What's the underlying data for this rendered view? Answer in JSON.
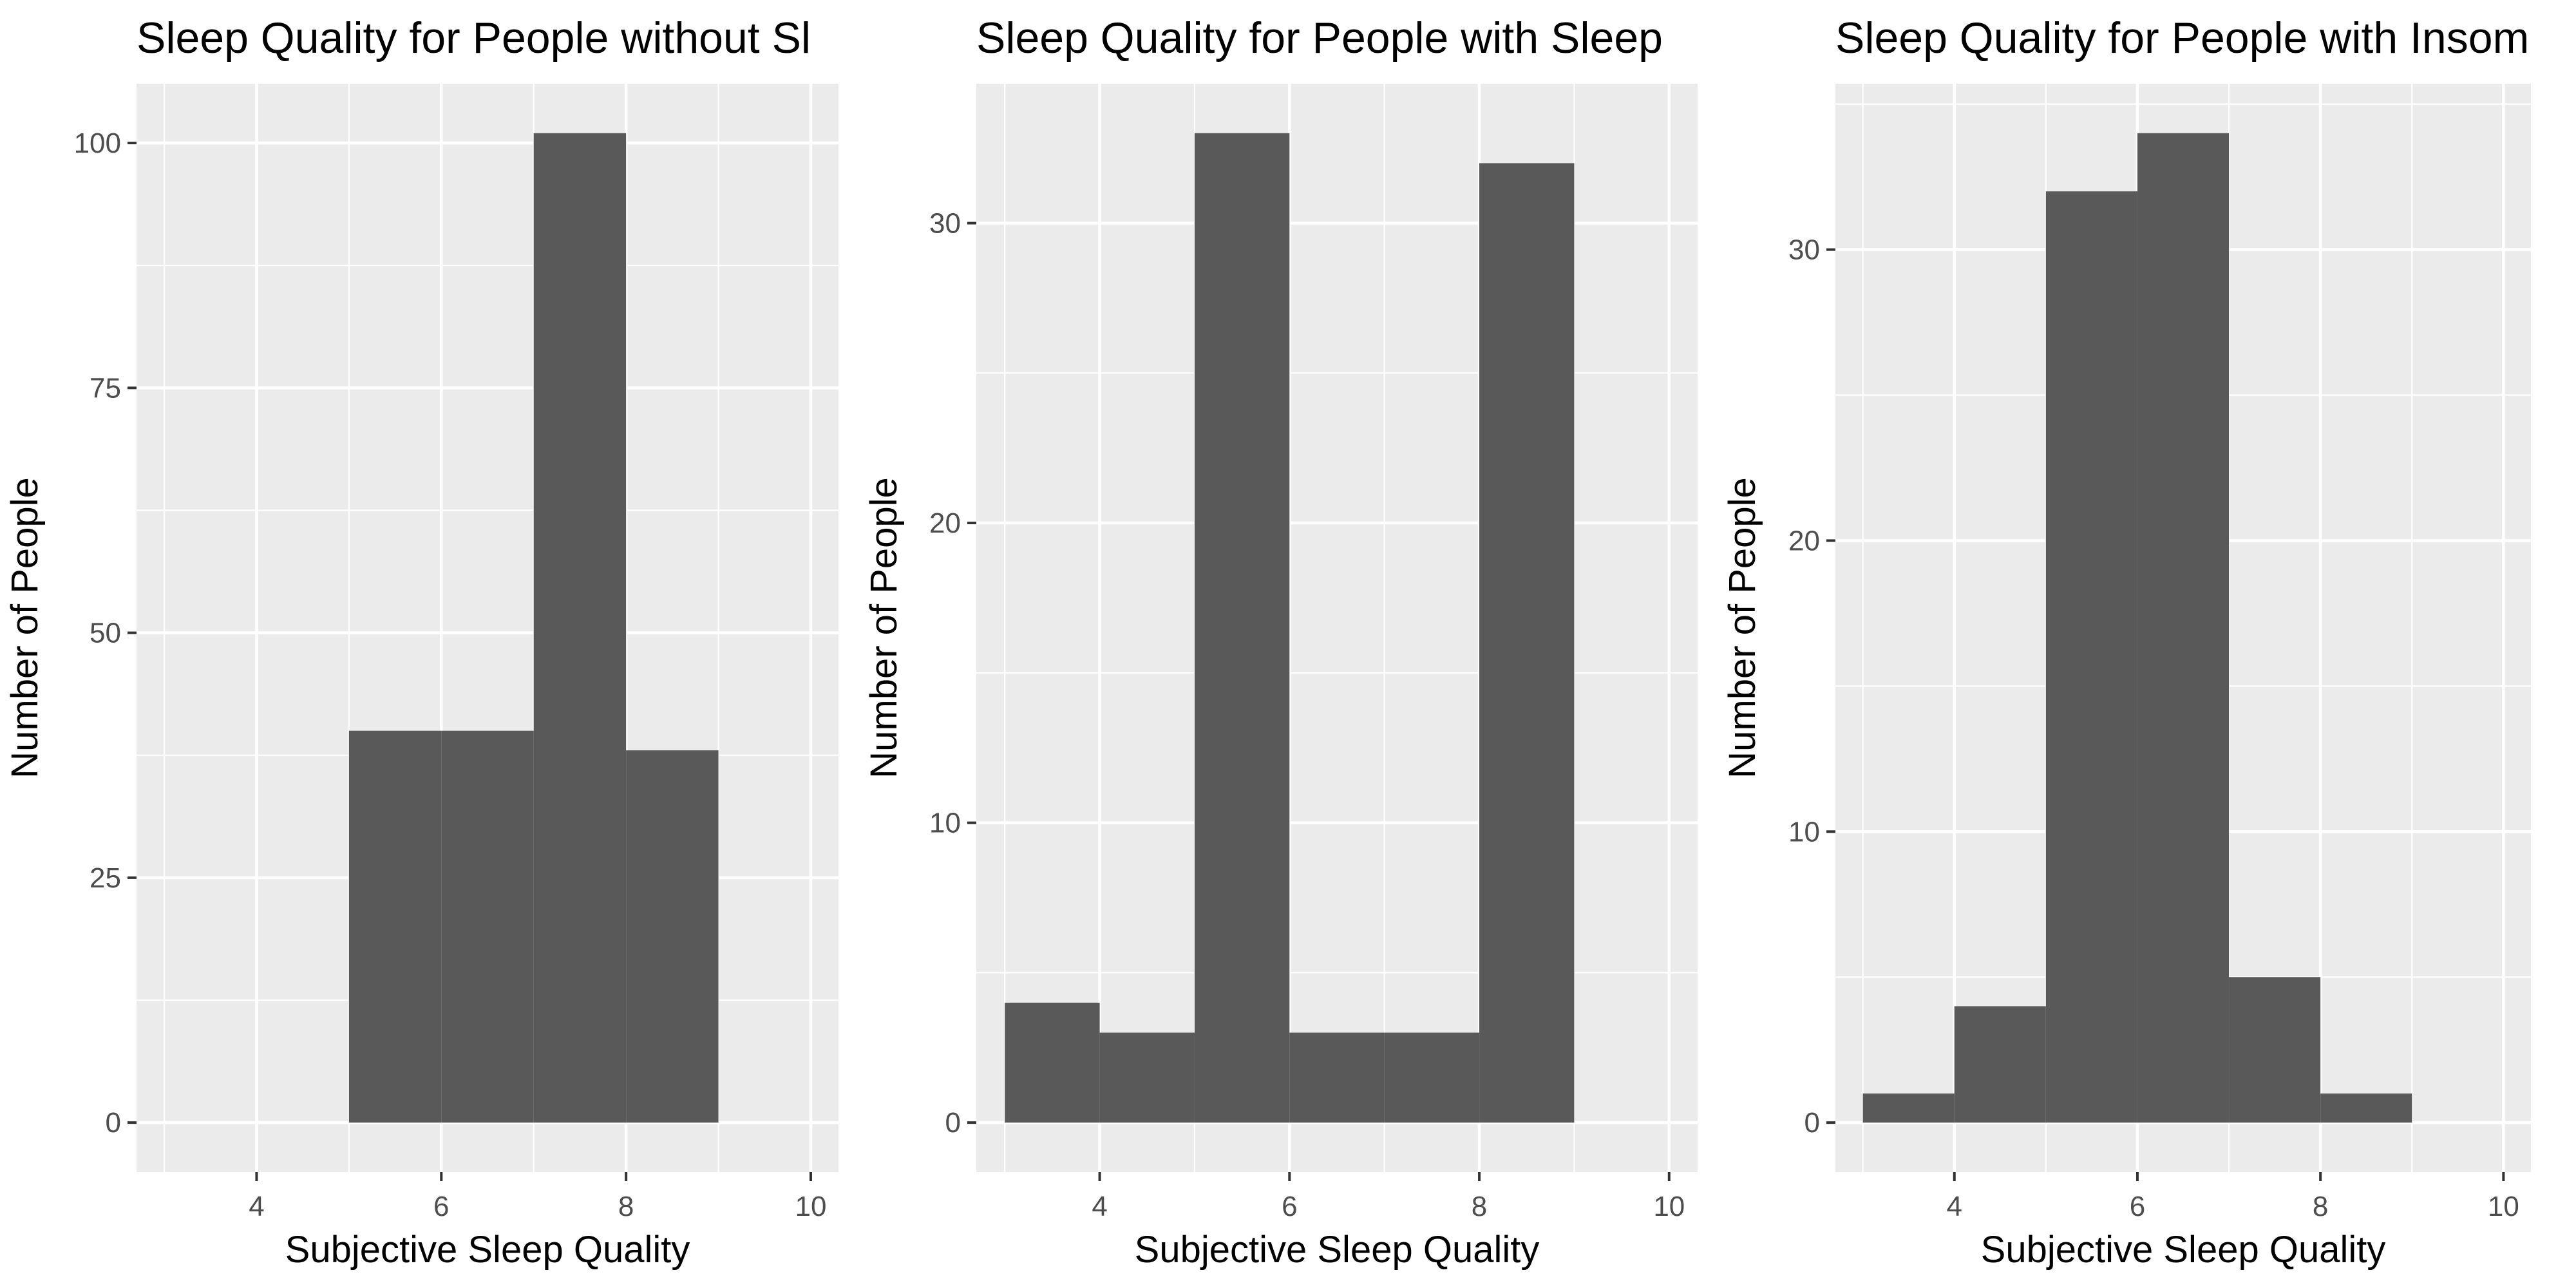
{
  "chart_data": [
    {
      "type": "bar",
      "title": "Sleep Quality for People without Sl",
      "xlabel": "Subjective Sleep Quality",
      "ylabel": "Number of People",
      "xlim": [
        2.7,
        10.3
      ],
      "ylim": [
        -5.05,
        106.05
      ],
      "x_ticks": [
        4,
        6,
        8,
        10
      ],
      "y_ticks": [
        0,
        25,
        50,
        75,
        100
      ],
      "bins": [
        {
          "start": 5,
          "end": 6,
          "value": 40
        },
        {
          "start": 6,
          "end": 7,
          "value": 40
        },
        {
          "start": 7,
          "end": 8,
          "value": 101
        },
        {
          "start": 8,
          "end": 9,
          "value": 38
        }
      ]
    },
    {
      "type": "bar",
      "title": "Sleep Quality for People with Sleep",
      "xlabel": "Subjective Sleep Quality",
      "ylabel": "Number of People",
      "xlim": [
        2.7,
        10.3
      ],
      "ylim": [
        -1.65,
        34.65
      ],
      "x_ticks": [
        4,
        6,
        8,
        10
      ],
      "y_ticks": [
        0,
        10,
        20,
        30
      ],
      "bins": [
        {
          "start": 3,
          "end": 4,
          "value": 4
        },
        {
          "start": 4,
          "end": 5,
          "value": 3
        },
        {
          "start": 5,
          "end": 6,
          "value": 33
        },
        {
          "start": 6,
          "end": 7,
          "value": 3
        },
        {
          "start": 7,
          "end": 8,
          "value": 3
        },
        {
          "start": 8,
          "end": 9,
          "value": 32
        }
      ]
    },
    {
      "type": "bar",
      "title": "Sleep Quality for People with Insom",
      "xlabel": "Subjective Sleep Quality",
      "ylabel": "Number of People",
      "xlim": [
        2.7,
        10.3
      ],
      "ylim": [
        -1.7,
        35.7
      ],
      "x_ticks": [
        4,
        6,
        8,
        10
      ],
      "y_ticks": [
        0,
        10,
        20,
        30
      ],
      "bins": [
        {
          "start": 3,
          "end": 4,
          "value": 1
        },
        {
          "start": 4,
          "end": 5,
          "value": 4
        },
        {
          "start": 5,
          "end": 6,
          "value": 32
        },
        {
          "start": 6,
          "end": 7,
          "value": 34
        },
        {
          "start": 7,
          "end": 8,
          "value": 5
        },
        {
          "start": 8,
          "end": 9,
          "value": 1
        }
      ]
    }
  ],
  "colors": {
    "panel_background": "#ebebeb",
    "bar_fill": "#595959",
    "grid": "#ffffff",
    "tick_text": "#4d4d4d",
    "title_text": "#000000"
  }
}
